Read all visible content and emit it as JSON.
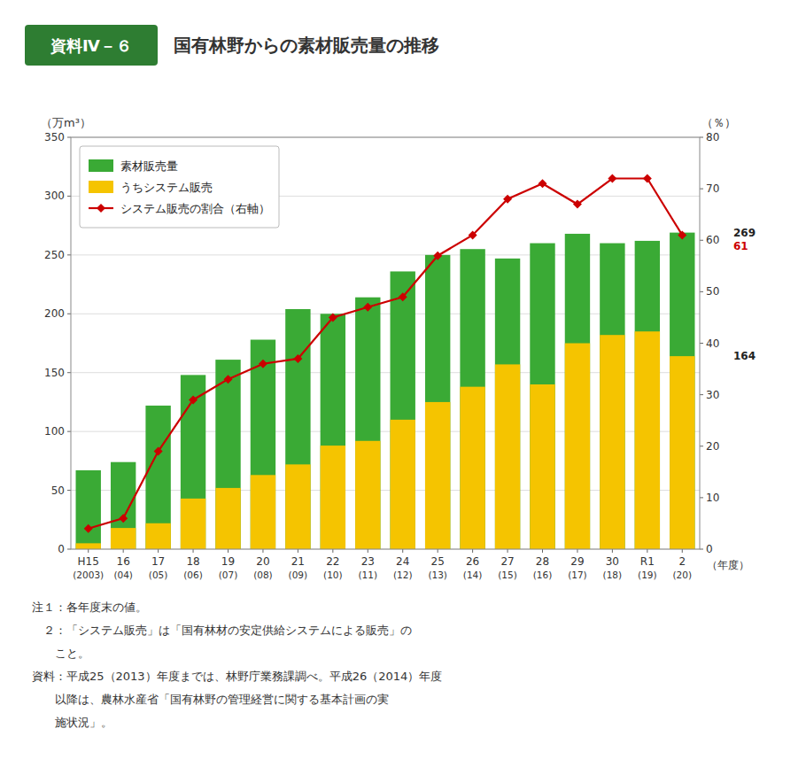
{
  "chart_data": {
    "type": "bar",
    "title": "国有林野からの素材販売量の推移",
    "figure_label": "資料Ⅳ－６",
    "categories": [
      "H15\n(2003)",
      "16\n(04)",
      "17\n(05)",
      "18\n(06)",
      "19\n(07)",
      "20\n(08)",
      "21\n(09)",
      "22\n(10)",
      "23\n(11)",
      "24\n(12)",
      "25\n(13)",
      "26\n(14)",
      "27\n(15)",
      "28\n(16)",
      "29\n(17)",
      "30\n(18)",
      "R1\n(19)",
      "2\n(20)"
    ],
    "series": [
      {
        "name": "素材販売量",
        "type": "bar",
        "color": "#3aaa35",
        "values": [
          67,
          74,
          122,
          148,
          161,
          178,
          204,
          200,
          214,
          236,
          250,
          255,
          247,
          260,
          268,
          260,
          262,
          269
        ]
      },
      {
        "name": "うちシステム販売",
        "type": "bar",
        "color": "#f5c400",
        "values": [
          5,
          18,
          22,
          43,
          52,
          63,
          72,
          88,
          92,
          110,
          125,
          138,
          157,
          140,
          175,
          182,
          185,
          164
        ]
      },
      {
        "name": "システム販売の割合（右軸）",
        "type": "line",
        "axis": "y2",
        "color": "#cc0000",
        "marker": "diamond",
        "values": [
          4,
          6,
          19,
          29,
          33,
          36,
          37,
          45,
          47,
          49,
          57,
          61,
          68,
          71,
          67,
          72,
          72,
          61
        ]
      }
    ],
    "stacked": false,
    "ylabel": "（万m³）",
    "y2label": "（％）",
    "xlabel": "（年度）",
    "ylim": [
      0,
      350
    ],
    "yticks": [
      0,
      50,
      100,
      150,
      200,
      250,
      300,
      350
    ],
    "y2lim": [
      0,
      80
    ],
    "y2ticks": [
      0,
      10,
      20,
      30,
      40,
      50,
      60,
      70,
      80
    ],
    "grid": true,
    "legend": "upper left",
    "annotations": [
      {
        "text": "269",
        "value": 269
      },
      {
        "text": "164",
        "value": 164
      },
      {
        "text": "61",
        "value": 61,
        "axis": "y2",
        "color": "#cc0000"
      }
    ],
    "notes": [
      "注１：各年度末の値。",
      "　２：「システム販売」は「国有林材の安定供給システムによる販売」の",
      "　　こと。",
      "資料：平成25（2013）年度までは、林野庁業務課調べ。平成26（2014）年度",
      "　　以降は、農林水産省「国有林野の管理経営に関する基本計画の実",
      "　　施状況」。"
    ]
  }
}
